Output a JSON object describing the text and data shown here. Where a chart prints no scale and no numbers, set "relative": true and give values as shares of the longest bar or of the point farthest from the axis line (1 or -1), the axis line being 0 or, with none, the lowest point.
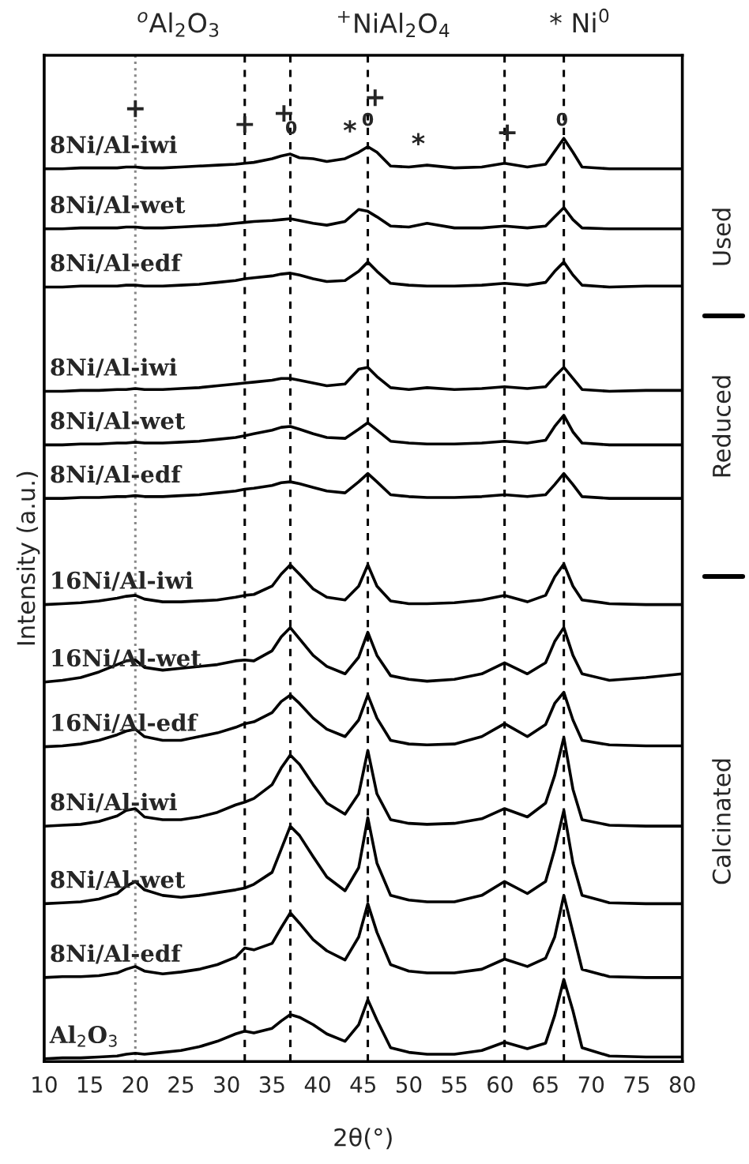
{
  "chart_data": {
    "type": "line",
    "relative": true,
    "xlabel": "2θ(°)",
    "ylabel": "Intensity (a.u.)",
    "x": [
      10,
      12,
      14,
      16,
      18,
      19,
      20,
      21,
      23,
      25,
      27,
      29,
      31,
      32,
      33,
      35,
      36,
      37,
      38,
      39.5,
      41,
      43,
      44.5,
      45.5,
      46.5,
      48,
      50,
      52,
      55,
      58,
      60.5,
      63,
      65,
      66,
      67,
      68,
      69,
      72,
      76,
      80
    ],
    "xlim": [
      10,
      80
    ],
    "xticks": [
      10,
      15,
      20,
      25,
      30,
      35,
      40,
      45,
      50,
      55,
      60,
      65,
      70,
      75,
      80
    ],
    "tick_labels": "x",
    "grid": false,
    "legend": false,
    "marker": "none",
    "line_style": "solid",
    "series": [
      {
        "name": "8Ni/Al-iwi",
        "color": "#000000",
        "values": [
          0.967,
          0.967,
          0.968,
          0.968,
          0.968,
          0.969,
          0.969,
          0.968,
          0.968,
          0.969,
          0.97,
          0.971,
          0.972,
          0.973,
          0.974,
          0.978,
          0.981,
          0.983,
          0.979,
          0.978,
          0.975,
          0.978,
          0.985,
          0.991,
          0.985,
          0.97,
          0.969,
          0.971,
          0.968,
          0.969,
          0.973,
          0.969,
          0.972,
          0.986,
          1.0,
          0.985,
          0.969,
          0.967,
          0.967,
          0.967
        ]
      },
      {
        "name": "8Ni/Al-wet",
        "color": "#000000",
        "values": [
          0.902,
          0.902,
          0.903,
          0.903,
          0.903,
          0.904,
          0.904,
          0.903,
          0.903,
          0.904,
          0.905,
          0.906,
          0.908,
          0.909,
          0.91,
          0.911,
          0.912,
          0.913,
          0.911,
          0.908,
          0.906,
          0.91,
          0.923,
          0.921,
          0.915,
          0.905,
          0.904,
          0.908,
          0.903,
          0.903,
          0.905,
          0.903,
          0.905,
          0.915,
          0.925,
          0.912,
          0.903,
          0.902,
          0.902,
          0.902
        ]
      },
      {
        "name": "8Ni/Al-edf",
        "color": "#000000",
        "values": [
          0.839,
          0.839,
          0.84,
          0.84,
          0.84,
          0.841,
          0.841,
          0.84,
          0.84,
          0.841,
          0.842,
          0.844,
          0.846,
          0.848,
          0.849,
          0.851,
          0.853,
          0.854,
          0.852,
          0.848,
          0.845,
          0.846,
          0.856,
          0.866,
          0.856,
          0.843,
          0.841,
          0.84,
          0.84,
          0.841,
          0.843,
          0.841,
          0.844,
          0.856,
          0.866,
          0.852,
          0.841,
          0.839,
          0.84,
          0.84
        ]
      },
      {
        "name": "8Ni/Al-iwi",
        "color": "#000000",
        "values": [
          0.726,
          0.726,
          0.727,
          0.727,
          0.728,
          0.728,
          0.729,
          0.728,
          0.728,
          0.729,
          0.73,
          0.732,
          0.734,
          0.735,
          0.736,
          0.738,
          0.74,
          0.74,
          0.738,
          0.735,
          0.732,
          0.734,
          0.75,
          0.752,
          0.742,
          0.73,
          0.728,
          0.73,
          0.728,
          0.729,
          0.731,
          0.729,
          0.731,
          0.742,
          0.752,
          0.74,
          0.728,
          0.726,
          0.727,
          0.727
        ]
      },
      {
        "name": "8Ni/Al-wet",
        "color": "#000000",
        "values": [
          0.668,
          0.668,
          0.669,
          0.669,
          0.67,
          0.67,
          0.671,
          0.67,
          0.67,
          0.671,
          0.672,
          0.674,
          0.676,
          0.678,
          0.68,
          0.684,
          0.687,
          0.688,
          0.685,
          0.68,
          0.676,
          0.675,
          0.685,
          0.692,
          0.684,
          0.672,
          0.67,
          0.669,
          0.669,
          0.67,
          0.672,
          0.67,
          0.673,
          0.688,
          0.7,
          0.682,
          0.67,
          0.668,
          0.668,
          0.668
        ]
      },
      {
        "name": "8Ni/Al-edf",
        "color": "#000000",
        "values": [
          0.61,
          0.61,
          0.611,
          0.611,
          0.612,
          0.612,
          0.613,
          0.612,
          0.612,
          0.613,
          0.614,
          0.616,
          0.618,
          0.62,
          0.621,
          0.624,
          0.627,
          0.628,
          0.626,
          0.622,
          0.618,
          0.616,
          0.628,
          0.637,
          0.628,
          0.614,
          0.612,
          0.611,
          0.611,
          0.612,
          0.614,
          0.612,
          0.614,
          0.625,
          0.637,
          0.625,
          0.612,
          0.61,
          0.61,
          0.61
        ]
      },
      {
        "name": "16Ni/Al-iwi",
        "color": "#000000",
        "values": [
          0.495,
          0.496,
          0.497,
          0.499,
          0.502,
          0.504,
          0.505,
          0.501,
          0.498,
          0.498,
          0.499,
          0.5,
          0.503,
          0.505,
          0.506,
          0.515,
          0.528,
          0.538,
          0.528,
          0.512,
          0.503,
          0.5,
          0.515,
          0.538,
          0.515,
          0.499,
          0.496,
          0.496,
          0.497,
          0.5,
          0.505,
          0.498,
          0.505,
          0.525,
          0.539,
          0.515,
          0.5,
          0.496,
          0.495,
          0.495
        ]
      },
      {
        "name": "16Ni/Al-wet",
        "color": "#000000",
        "values": [
          0.411,
          0.413,
          0.416,
          0.422,
          0.43,
          0.434,
          0.435,
          0.427,
          0.424,
          0.426,
          0.428,
          0.43,
          0.434,
          0.435,
          0.434,
          0.445,
          0.46,
          0.47,
          0.458,
          0.44,
          0.428,
          0.42,
          0.438,
          0.465,
          0.44,
          0.418,
          0.414,
          0.412,
          0.414,
          0.42,
          0.432,
          0.42,
          0.432,
          0.455,
          0.47,
          0.44,
          0.42,
          0.413,
          0.416,
          0.42
        ]
      },
      {
        "name": "16Ni/Al-edf",
        "color": "#000000",
        "values": [
          0.341,
          0.342,
          0.344,
          0.348,
          0.354,
          0.358,
          0.36,
          0.352,
          0.348,
          0.348,
          0.352,
          0.356,
          0.362,
          0.366,
          0.368,
          0.378,
          0.39,
          0.397,
          0.388,
          0.372,
          0.36,
          0.352,
          0.37,
          0.397,
          0.372,
          0.348,
          0.344,
          0.343,
          0.344,
          0.352,
          0.366,
          0.352,
          0.365,
          0.388,
          0.4,
          0.37,
          0.348,
          0.343,
          0.342,
          0.342
        ]
      },
      {
        "name": "8Ni/Al-iwi",
        "color": "#000000",
        "values": [
          0.255,
          0.256,
          0.257,
          0.26,
          0.266,
          0.272,
          0.274,
          0.265,
          0.262,
          0.262,
          0.265,
          0.27,
          0.278,
          0.281,
          0.285,
          0.3,
          0.318,
          0.332,
          0.322,
          0.3,
          0.28,
          0.268,
          0.29,
          0.337,
          0.29,
          0.262,
          0.258,
          0.257,
          0.258,
          0.263,
          0.274,
          0.265,
          0.28,
          0.31,
          0.351,
          0.295,
          0.262,
          0.256,
          0.255,
          0.255
        ]
      },
      {
        "name": "8Ni/Al-wet",
        "color": "#000000",
        "values": [
          0.171,
          0.172,
          0.173,
          0.176,
          0.182,
          0.19,
          0.195,
          0.186,
          0.18,
          0.178,
          0.18,
          0.183,
          0.186,
          0.188,
          0.192,
          0.205,
          0.23,
          0.255,
          0.245,
          0.222,
          0.2,
          0.185,
          0.21,
          0.264,
          0.215,
          0.18,
          0.175,
          0.173,
          0.173,
          0.18,
          0.195,
          0.182,
          0.195,
          0.23,
          0.272,
          0.215,
          0.18,
          0.172,
          0.171,
          0.171
        ]
      },
      {
        "name": "8Ni/Al-edf",
        "color": "#000000",
        "values": [
          0.091,
          0.092,
          0.092,
          0.093,
          0.096,
          0.1,
          0.103,
          0.098,
          0.095,
          0.097,
          0.1,
          0.105,
          0.113,
          0.123,
          0.121,
          0.128,
          0.145,
          0.161,
          0.15,
          0.132,
          0.12,
          0.11,
          0.135,
          0.171,
          0.14,
          0.105,
          0.098,
          0.096,
          0.096,
          0.1,
          0.111,
          0.103,
          0.112,
          0.135,
          0.18,
          0.14,
          0.1,
          0.092,
          0.091,
          0.091
        ]
      },
      {
        "name": "Al$_{2}$O$_{3}$",
        "color": "#000000",
        "values": [
          0.003,
          0.004,
          0.004,
          0.005,
          0.006,
          0.008,
          0.009,
          0.008,
          0.01,
          0.012,
          0.016,
          0.022,
          0.03,
          0.033,
          0.031,
          0.036,
          0.044,
          0.051,
          0.048,
          0.04,
          0.03,
          0.022,
          0.04,
          0.067,
          0.045,
          0.015,
          0.01,
          0.008,
          0.008,
          0.012,
          0.021,
          0.014,
          0.02,
          0.05,
          0.089,
          0.055,
          0.015,
          0.006,
          0.005,
          0.005
        ]
      }
    ],
    "ref_lines": [
      {
        "axis": "x",
        "value": 20,
        "color": "#888888",
        "line_style": "dotted"
      },
      {
        "axis": "x",
        "value": 32,
        "color": "#000000",
        "line_style": "dashed"
      },
      {
        "axis": "x",
        "value": 37,
        "color": "#000000",
        "line_style": "dashed"
      },
      {
        "axis": "x",
        "value": 45.5,
        "color": "#000000",
        "line_style": "dashed"
      },
      {
        "axis": "x",
        "value": 60.5,
        "color": "#000000",
        "line_style": "dashed"
      },
      {
        "axis": "x",
        "value": 67,
        "color": "#000000",
        "line_style": "dashed"
      }
    ],
    "annotations": [
      "$^{o}$Al$_{2}$O$_{3}$",
      "$^{+}$NiAl$_{2}$O$_{4}$",
      "* Ni$^{0}$",
      "Used",
      "Reduced",
      "Calcinated",
      {
        "text": "+",
        "x": 20,
        "y": 1.031
      },
      {
        "text": "+",
        "x": 32,
        "y": 1.014
      },
      {
        "text": "+",
        "x": 36.3,
        "y": 1.026
      },
      {
        "text": "0",
        "x": 37.1,
        "y": 1.01
      },
      {
        "text": "*",
        "x": 44.5,
        "y": 0.985
      },
      {
        "text": "0",
        "x": 45.5,
        "y": 1.019
      },
      {
        "text": "+",
        "x": 46.3,
        "y": 1.043
      },
      {
        "text": "*",
        "x": 52,
        "y": 0.971
      },
      {
        "text": "+",
        "x": 60.8,
        "y": 1.005
      },
      {
        "text": "0",
        "x": 66.8,
        "y": 1.019
      }
    ]
  }
}
